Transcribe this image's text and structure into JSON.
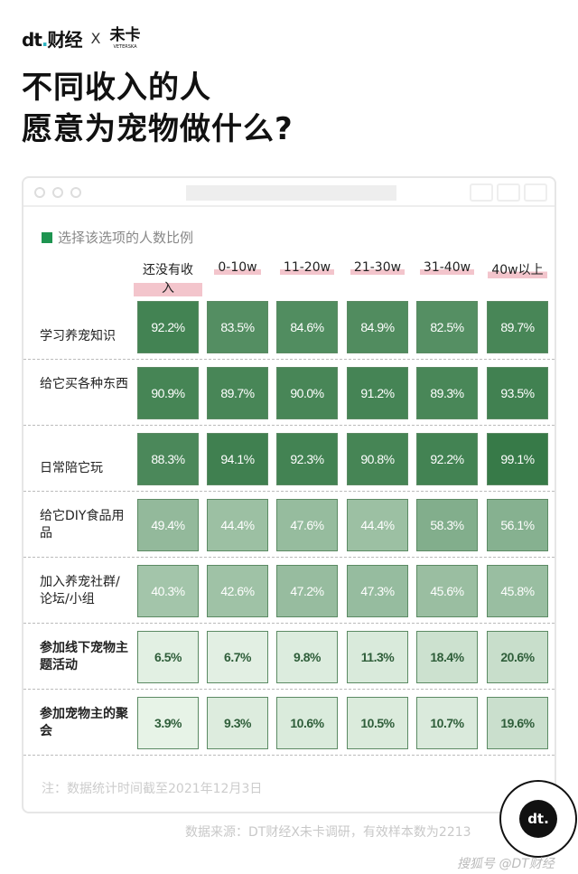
{
  "brand": {
    "left": "dt",
    "left_cn": "财经",
    "x": "X",
    "right": "未卡",
    "right_sub": "VETERSKA"
  },
  "title": {
    "line1": "不同收入的人",
    "line2": "愿意为宠物做什么?"
  },
  "chart_data": {
    "type": "heatmap",
    "legend": "选择该选项的人数比例",
    "columns": [
      "还没有收入",
      "0-10w",
      "11-20w",
      "21-30w",
      "31-40w",
      "40w以上"
    ],
    "rows": [
      {
        "label": "学习养宠知识",
        "values": [
          92.2,
          83.5,
          84.6,
          84.9,
          82.5,
          89.7
        ]
      },
      {
        "label": "给它买各种东西",
        "values": [
          90.9,
          89.7,
          90.0,
          91.2,
          89.3,
          93.5
        ]
      },
      {
        "label": "日常陪它玩",
        "values": [
          88.3,
          94.1,
          92.3,
          90.8,
          92.2,
          99.1
        ]
      },
      {
        "label": "给它DIY食品用品",
        "values": [
          49.4,
          44.4,
          47.6,
          44.4,
          58.3,
          56.1
        ]
      },
      {
        "label": "加入养宠社群/论坛/小组",
        "values": [
          40.3,
          42.6,
          47.2,
          47.3,
          45.6,
          45.8
        ]
      },
      {
        "label": "参加线下宠物主题活动",
        "values": [
          6.5,
          6.7,
          9.8,
          11.3,
          18.4,
          20.6
        ]
      },
      {
        "label": "参加宠物主的聚会",
        "values": [
          3.9,
          9.3,
          10.6,
          10.5,
          10.7,
          19.6
        ]
      }
    ],
    "unit": "%",
    "colors": {
      "low": "#eef8ee",
      "high": "#357946",
      "legend": "#1e9450",
      "highlight": "#f3c5cc"
    }
  },
  "footer": {
    "note": "注：数据统计时间截至2021年12月3日",
    "source": "数据来源：DT财经X未卡调研，有效样本数为2213",
    "badge": "dt.",
    "watermark": "搜狐号 @DT财经"
  }
}
